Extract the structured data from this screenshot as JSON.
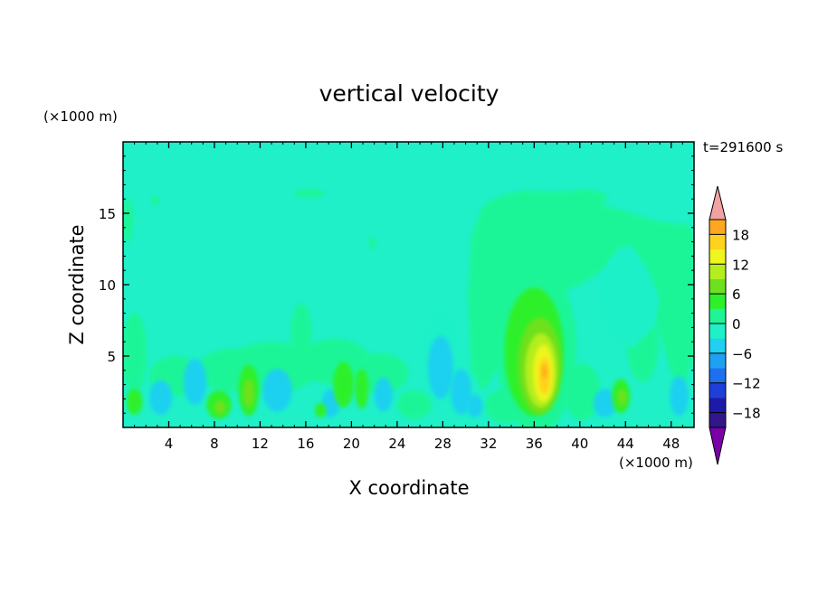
{
  "chart_data": {
    "type": "heatmap",
    "title": "vertical velocity",
    "xlabel": "X coordinate",
    "ylabel": "Z coordinate",
    "x_unit": "(×1000 m)",
    "y_unit": "(×1000 m)",
    "time_label": "t=291600 s",
    "xlim": [
      0,
      50
    ],
    "ylim": [
      0,
      20
    ],
    "x_ticks": [
      4,
      8,
      12,
      16,
      20,
      24,
      28,
      32,
      36,
      40,
      44,
      48
    ],
    "y_ticks": [
      5,
      10,
      15
    ],
    "colorbar": {
      "range": [
        -21,
        21
      ],
      "step": 3,
      "tick_values": [
        18,
        12,
        6,
        0,
        -6,
        -12,
        -18
      ],
      "colors": [
        "#7a00a8",
        "#32168a",
        "#1e1aa8",
        "#1f3fd8",
        "#1f70ee",
        "#1fa0f2",
        "#1fd0f0",
        "#1ff0c8",
        "#1ff597",
        "#2df02a",
        "#6ee01f",
        "#b4ee1f",
        "#eef51f",
        "#ffd21f",
        "#ffa81f",
        "#ff7a1f",
        "#ff4a1f",
        "#ff1f1f",
        "#f2a2a2"
      ],
      "extend": "both"
    },
    "field_features": [
      {
        "x": 36.5,
        "z": 3.8,
        "w": 15,
        "note": "updraft core"
      },
      {
        "x": 35.5,
        "z": 6.0,
        "w": 6
      },
      {
        "x": 11.0,
        "z": 2.4,
        "w": 6
      },
      {
        "x": 8.5,
        "z": 1.5,
        "w": 5
      },
      {
        "x": 43.5,
        "z": 2.0,
        "w": 3
      },
      {
        "x": 19.5,
        "z": 2.8,
        "w": 3
      },
      {
        "x": 28.0,
        "z": 2.5,
        "w": -5
      },
      {
        "x": 38.0,
        "z": 13.0,
        "w": 1.5
      },
      {
        "x": 27.0,
        "z": 6.0,
        "w": -1.5
      }
    ]
  }
}
